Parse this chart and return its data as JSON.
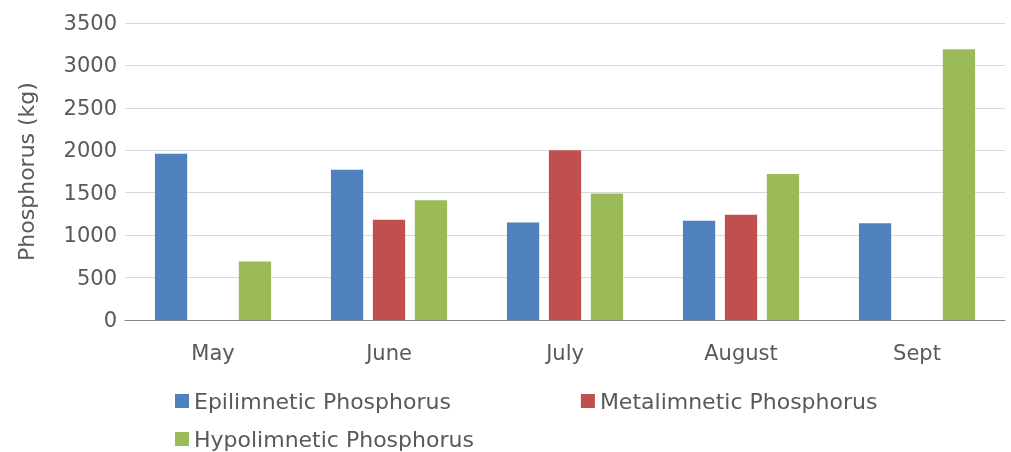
{
  "chart_data": {
    "type": "bar",
    "ylabel": "Phosphorus (kg)",
    "categories": [
      "May",
      "June",
      "July",
      "August",
      "Sept"
    ],
    "series": [
      {
        "name": "Epilimnetic Phosphorus",
        "color": "#4f81bd",
        "values": [
          1960,
          1770,
          1150,
          1170,
          1140
        ]
      },
      {
        "name": "Metalimnetic Phosphorus",
        "color": "#c0504d",
        "values": [
          null,
          1180,
          2000,
          1240,
          null
        ]
      },
      {
        "name": "Hypolimnetic Phosphorus",
        "color": "#9bbb59",
        "values": [
          690,
          1410,
          1490,
          1720,
          3190
        ]
      }
    ],
    "ylim": [
      0,
      3500
    ],
    "yticks": [
      0,
      500,
      1000,
      1500,
      2000,
      2500,
      3000,
      3500
    ],
    "grid": "y",
    "legend": "bottom"
  }
}
